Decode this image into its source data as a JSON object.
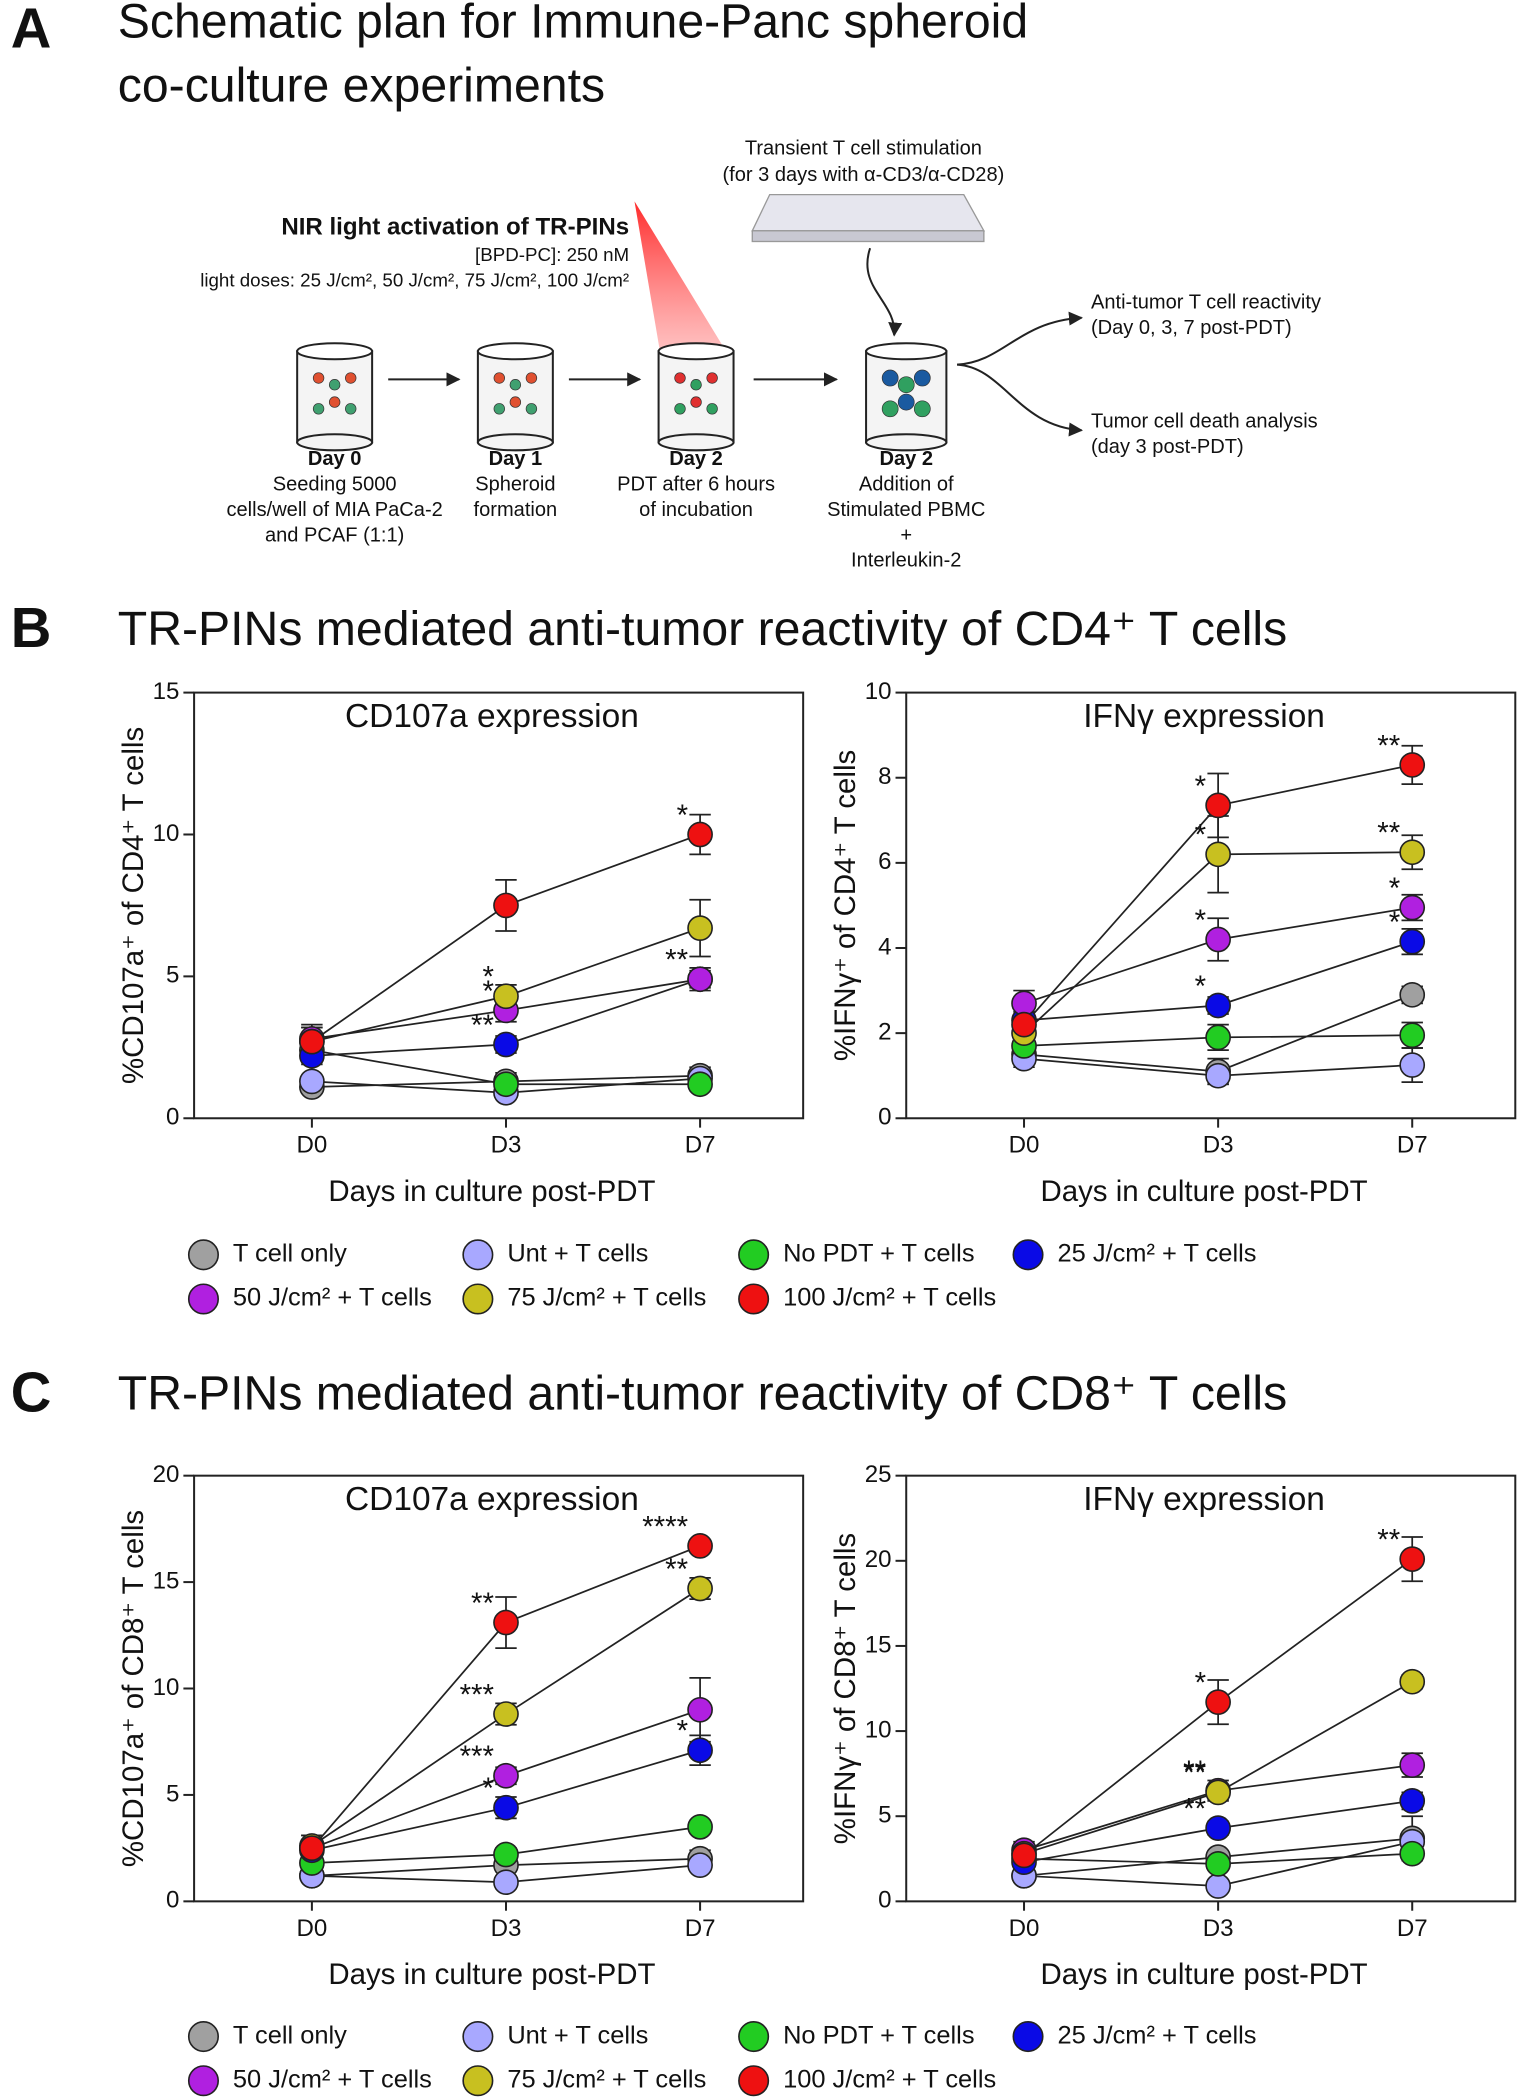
{
  "panel_a": {
    "letter": "A",
    "title": [
      "Schematic plan for Immune-Panc spheroid",
      "co-culture experiments"
    ],
    "stimulation": [
      "Transient T cell stimulation",
      "(for 3 days with α-CD3/α-CD28)"
    ],
    "nir_title": "NIR light activation of TR-PINs",
    "nir_conc": "[BPD-PC]: 250 nM",
    "light_doses": "light doses:  25 J/cm², 50 J/cm²,  75 J/cm², 100 J/cm²",
    "steps": [
      {
        "day": "Day 0",
        "lines": [
          "Seeding 5000",
          "cells/well of MIA PaCa-2",
          "and PCAF (1:1)"
        ]
      },
      {
        "day": "Day 1",
        "lines": [
          "Spheroid",
          "formation"
        ]
      },
      {
        "day": "Day 2",
        "lines": [
          "PDT after 6 hours",
          "of incubation"
        ]
      },
      {
        "day": "Day 2",
        "lines": [
          "Addition of",
          "Stimulated PBMC",
          "+",
          "Interleukin-2"
        ]
      }
    ],
    "outcomes": [
      [
        "Anti-tumor T cell reactivity",
        "(Day 0, 3, 7 post-PDT)"
      ],
      [
        "Tumor cell death analysis",
        "(day 3 post-PDT)"
      ]
    ]
  },
  "panel_b": {
    "letter": "B",
    "title": "TR-PINs mediated anti-tumor reactivity of CD4⁺ T cells"
  },
  "panel_c": {
    "letter": "C",
    "title": "TR-PINs mediated anti-tumor reactivity of CD8⁺ T cells"
  },
  "chart_data": [
    {
      "type": "line",
      "title": "CD107a expression",
      "x_label": "Days in culture post-PDT",
      "y_label": "%CD107a⁺ of CD4⁺ T cells",
      "categories": [
        "D0",
        "D3",
        "D7"
      ],
      "ylim": [
        0,
        15
      ],
      "yticks": [
        0,
        5,
        10,
        15
      ],
      "series": [
        {
          "name": "T cell only",
          "color": "#a0a0a0",
          "values": [
            1.1,
            1.3,
            1.5
          ],
          "errors": [
            0.2,
            0.3,
            0.3
          ],
          "annotations": [
            null,
            null,
            null
          ]
        },
        {
          "name": "Unt + T cells",
          "color": "#a8a8ff",
          "values": [
            1.3,
            0.9,
            1.4
          ],
          "errors": [
            0.2,
            0.2,
            0.2
          ],
          "annotations": [
            null,
            null,
            null
          ]
        },
        {
          "name": "No PDT + T cells",
          "color": "#22cc22",
          "values": [
            2.4,
            1.2,
            1.2
          ],
          "errors": [
            0.3,
            0.2,
            0.2
          ],
          "annotations": [
            null,
            null,
            null
          ]
        },
        {
          "name": "25 J/cm² + T cells",
          "color": "#0a0ae6",
          "values": [
            2.2,
            2.6,
            4.9
          ],
          "errors": [
            0.3,
            0.3,
            0.4
          ],
          "annotations": [
            null,
            "**",
            "**"
          ]
        },
        {
          "name": "50 J/cm² + T cells",
          "color": "#b020e0",
          "values": [
            2.8,
            3.8,
            4.9
          ],
          "errors": [
            0.4,
            0.4,
            0.3
          ],
          "annotations": [
            null,
            "*",
            null
          ]
        },
        {
          "name": "75 J/cm² + T cells",
          "color": "#c8c020",
          "values": [
            2.7,
            4.3,
            6.7
          ],
          "errors": [
            0.5,
            0.4,
            1.0
          ],
          "annotations": [
            null,
            "*",
            null
          ]
        },
        {
          "name": "100 J/cm² + T cells",
          "color": "#ee1111",
          "values": [
            2.7,
            7.5,
            10.0
          ],
          "errors": [
            0.6,
            0.9,
            0.7
          ],
          "annotations": [
            null,
            null,
            "*"
          ]
        }
      ]
    },
    {
      "type": "line",
      "title": "IFNγ expression",
      "x_label": "Days in culture post-PDT",
      "y_label": "%IFNγ⁺ of CD4⁺ T cells",
      "categories": [
        "D0",
        "D3",
        "D7"
      ],
      "ylim": [
        0,
        10
      ],
      "yticks": [
        0,
        2,
        4,
        6,
        8,
        10
      ],
      "series": [
        {
          "name": "T cell only",
          "color": "#a0a0a0",
          "values": [
            1.5,
            1.1,
            2.9
          ],
          "errors": [
            0.2,
            0.3,
            0.2
          ],
          "annotations": [
            null,
            null,
            null
          ]
        },
        {
          "name": "Unt + T cells",
          "color": "#a8a8ff",
          "values": [
            1.4,
            1.0,
            1.25
          ],
          "errors": [
            0.2,
            0.2,
            0.4
          ],
          "annotations": [
            null,
            null,
            null
          ]
        },
        {
          "name": "No PDT + T cells",
          "color": "#22cc22",
          "values": [
            1.7,
            1.9,
            1.95
          ],
          "errors": [
            0.2,
            0.3,
            0.3
          ],
          "annotations": [
            null,
            null,
            null
          ]
        },
        {
          "name": "25 J/cm² + T cells",
          "color": "#0a0ae6",
          "values": [
            2.3,
            2.65,
            4.15
          ],
          "errors": [
            0.3,
            0.2,
            0.3
          ],
          "annotations": [
            null,
            "*",
            "*"
          ]
        },
        {
          "name": "50 J/cm² + T cells",
          "color": "#b020e0",
          "values": [
            2.7,
            4.2,
            4.95
          ],
          "errors": [
            0.3,
            0.5,
            0.3
          ],
          "annotations": [
            null,
            "*",
            "*"
          ]
        },
        {
          "name": "75 J/cm² + T cells",
          "color": "#c8c020",
          "values": [
            2.0,
            6.2,
            6.25
          ],
          "errors": [
            0.3,
            0.9,
            0.4
          ],
          "annotations": [
            null,
            "*",
            "**"
          ]
        },
        {
          "name": "100 J/cm² + T cells",
          "color": "#ee1111",
          "values": [
            2.2,
            7.35,
            8.3
          ],
          "errors": [
            0.3,
            0.75,
            0.45
          ],
          "annotations": [
            null,
            "*",
            "**"
          ]
        }
      ]
    },
    {
      "type": "line",
      "title": "CD107a expression",
      "x_label": "Days in culture post-PDT",
      "y_label": "%CD107a⁺ of CD8⁺ T cells",
      "categories": [
        "D0",
        "D3",
        "D7"
      ],
      "ylim": [
        0,
        20
      ],
      "yticks": [
        0,
        5,
        10,
        15,
        20
      ],
      "series": [
        {
          "name": "T cell only",
          "color": "#a0a0a0",
          "values": [
            1.2,
            1.7,
            2.0
          ],
          "errors": [
            0.3,
            0.3,
            0.4
          ],
          "annotations": [
            null,
            null,
            null
          ]
        },
        {
          "name": "Unt + T cells",
          "color": "#a8a8ff",
          "values": [
            1.2,
            0.9,
            1.7
          ],
          "errors": [
            0.2,
            0.2,
            0.3
          ],
          "annotations": [
            null,
            null,
            null
          ]
        },
        {
          "name": "No PDT + T cells",
          "color": "#22cc22",
          "values": [
            1.8,
            2.2,
            3.5
          ],
          "errors": [
            0.3,
            0.3,
            0.3
          ],
          "annotations": [
            null,
            null,
            null
          ]
        },
        {
          "name": "25 J/cm² + T cells",
          "color": "#0a0ae6",
          "values": [
            2.4,
            4.4,
            7.1
          ],
          "errors": [
            0.4,
            0.5,
            0.7
          ],
          "annotations": [
            null,
            "*",
            "*"
          ]
        },
        {
          "name": "50 J/cm² + T cells",
          "color": "#b020e0",
          "values": [
            2.5,
            5.9,
            9.0
          ],
          "errors": [
            0.4,
            0.4,
            1.5
          ],
          "annotations": [
            null,
            "***",
            null
          ]
        },
        {
          "name": "75 J/cm² + T cells",
          "color": "#c8c020",
          "values": [
            2.6,
            8.8,
            14.7
          ],
          "errors": [
            0.5,
            0.5,
            0.5
          ],
          "annotations": [
            null,
            "***",
            "**"
          ]
        },
        {
          "name": "100 J/cm² + T cells",
          "color": "#ee1111",
          "values": [
            2.5,
            13.1,
            16.7
          ],
          "errors": [
            0.6,
            1.2,
            0.2
          ],
          "annotations": [
            null,
            "**",
            "****"
          ]
        }
      ]
    },
    {
      "type": "line",
      "title": "IFNγ expression",
      "x_label": "Days in culture post-PDT",
      "y_label": "%IFNγ⁺ of CD8⁺ T cells",
      "categories": [
        "D0",
        "D3",
        "D7"
      ],
      "ylim": [
        0,
        25
      ],
      "yticks": [
        0,
        5,
        10,
        15,
        20,
        25
      ],
      "series": [
        {
          "name": "T cell only",
          "color": "#a0a0a0",
          "values": [
            1.5,
            2.6,
            3.7
          ],
          "errors": [
            0.3,
            0.3,
            1.3
          ],
          "annotations": [
            null,
            null,
            null
          ]
        },
        {
          "name": "Unt + T cells",
          "color": "#a8a8ff",
          "values": [
            1.5,
            0.9,
            3.5
          ],
          "errors": [
            0.2,
            0.2,
            0.4
          ],
          "annotations": [
            null,
            null,
            null
          ]
        },
        {
          "name": "No PDT + T cells",
          "color": "#22cc22",
          "values": [
            2.5,
            2.2,
            2.8
          ],
          "errors": [
            0.3,
            0.3,
            0.4
          ],
          "annotations": [
            null,
            null,
            null
          ]
        },
        {
          "name": "25 J/cm² + T cells",
          "color": "#0a0ae6",
          "values": [
            2.3,
            4.3,
            5.9
          ],
          "errors": [
            0.3,
            0.4,
            0.5
          ],
          "annotations": [
            null,
            "**",
            null
          ]
        },
        {
          "name": "50 J/cm² + T cells",
          "color": "#b020e0",
          "values": [
            3.0,
            6.5,
            8.0
          ],
          "errors": [
            0.5,
            0.6,
            0.7
          ],
          "annotations": [
            null,
            "**",
            null
          ]
        },
        {
          "name": "75 J/cm² + T cells",
          "color": "#c8c020",
          "values": [
            2.8,
            6.4,
            12.9
          ],
          "errors": [
            0.4,
            0.4,
            0.4
          ],
          "annotations": [
            null,
            "**",
            null
          ]
        },
        {
          "name": "100 J/cm² + T cells",
          "color": "#ee1111",
          "values": [
            2.7,
            11.7,
            20.1
          ],
          "errors": [
            0.5,
            1.3,
            1.3
          ],
          "annotations": [
            null,
            "*",
            "**"
          ]
        }
      ]
    }
  ]
}
